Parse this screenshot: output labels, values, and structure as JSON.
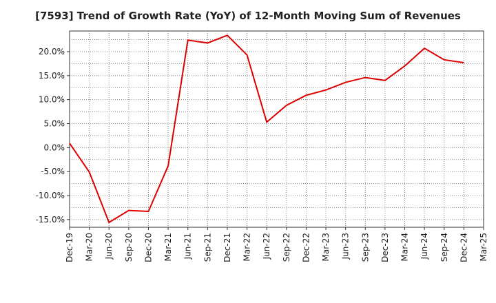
{
  "chart_data": {
    "type": "line",
    "title": "[7593]  Trend of Growth Rate (YoY) of 12-Month Moving Sum of Revenues",
    "xlabel": "",
    "ylabel": "",
    "x_ticks": [
      "Dec-19",
      "Mar-20",
      "Jun-20",
      "Sep-20",
      "Dec-20",
      "Mar-21",
      "Jun-21",
      "Sep-21",
      "Dec-21",
      "Mar-22",
      "Jun-22",
      "Sep-22",
      "Dec-22",
      "Mar-23",
      "Jun-23",
      "Sep-23",
      "Dec-23",
      "Mar-24",
      "Jun-24",
      "Sep-24",
      "Dec-24",
      "Mar-25"
    ],
    "y_ticks": [
      "20.0%",
      "15.0%",
      "10.0%",
      "5.0%",
      "0.0%",
      "-5.0%",
      "-10.0%",
      "-15.0%"
    ],
    "y_tick_values": [
      20,
      15,
      10,
      5,
      0,
      -5,
      -10,
      -15
    ],
    "ylim": [
      -16.6,
      24.3
    ],
    "grid": true,
    "line_color": "#dd0000",
    "series": [
      {
        "x": [
          "Dec-19",
          "Mar-20",
          "Jun-20",
          "Sep-20",
          "Dec-20",
          "Mar-21",
          "Jun-21",
          "Sep-21",
          "Dec-21",
          "Mar-22",
          "Jun-22",
          "Sep-22",
          "Dec-22",
          "Mar-23",
          "Jun-23",
          "Sep-23",
          "Dec-23",
          "Mar-24",
          "Jun-24",
          "Sep-24",
          "Dec-24"
        ],
        "values": [
          0.9,
          -5.1,
          -15.6,
          -13.1,
          -13.3,
          -3.8,
          22.4,
          21.8,
          23.4,
          19.3,
          5.3,
          8.8,
          10.9,
          12.0,
          13.6,
          14.6,
          14.0,
          17.0,
          20.7,
          18.3,
          17.7
        ]
      }
    ]
  }
}
